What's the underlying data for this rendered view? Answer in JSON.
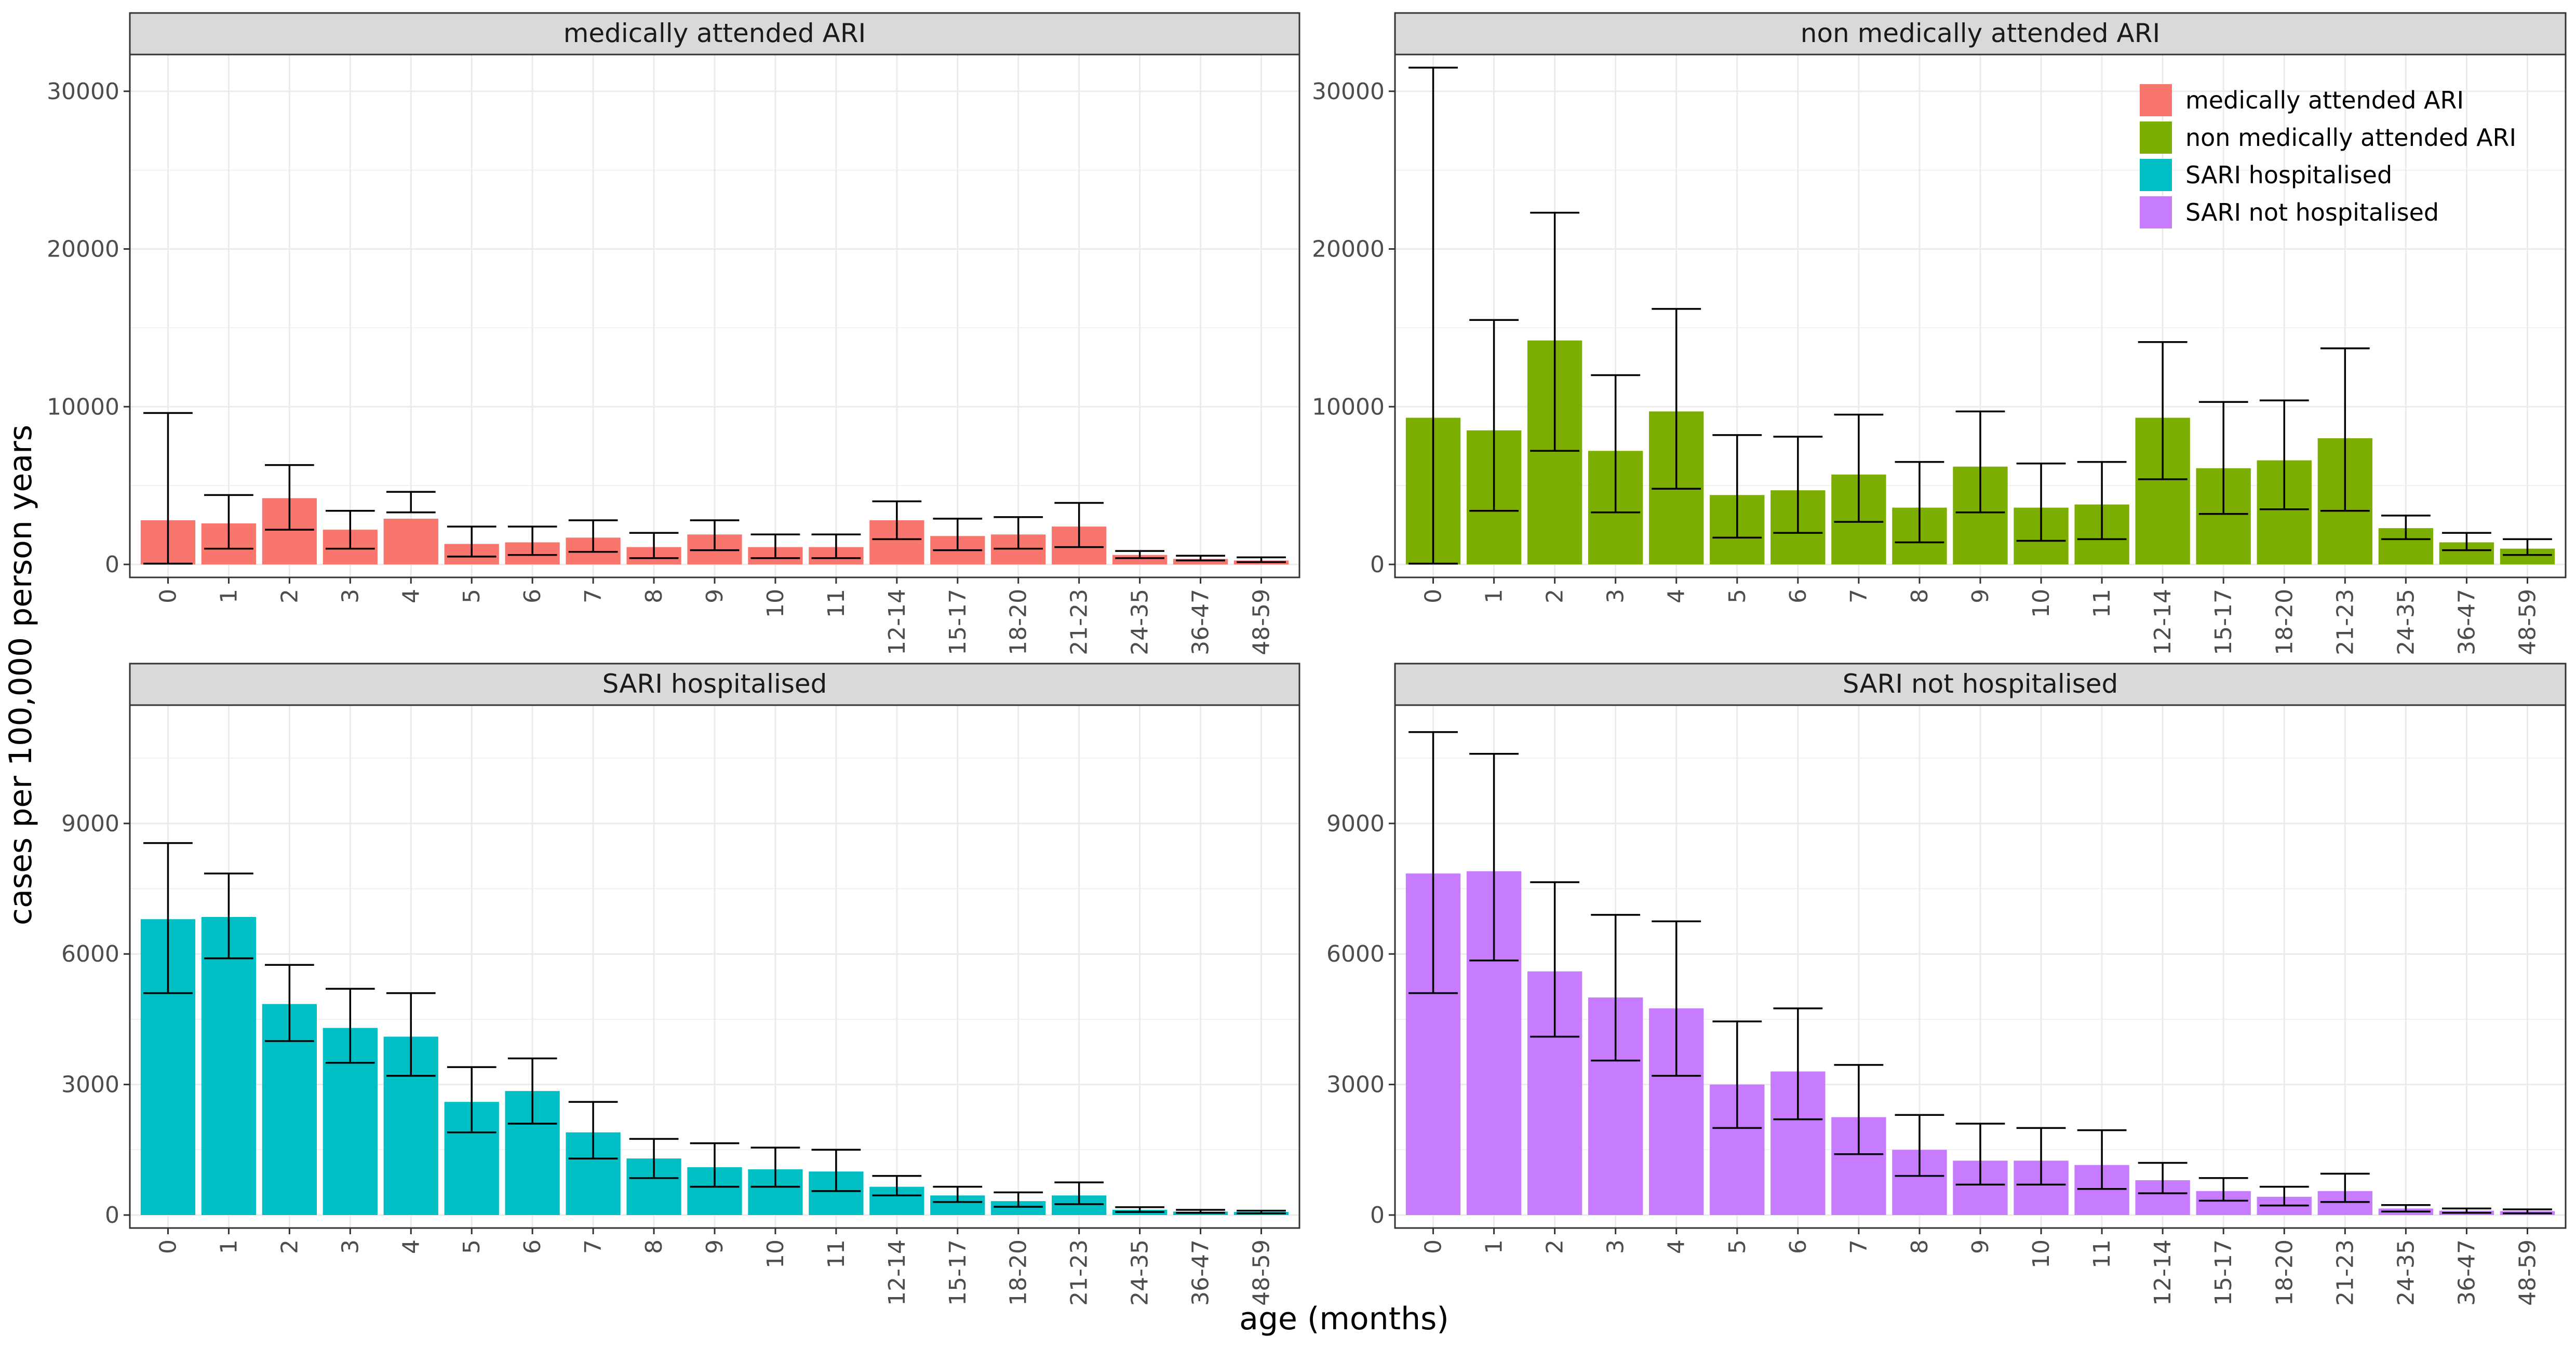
{
  "xlabel": "age (months)",
  "ylabel": "cases per 100,000 person years",
  "legend": {
    "position": "top-right",
    "entries": [
      {
        "label": "medically attended ARI",
        "color": "#F8766D"
      },
      {
        "label": "non medically attended ARI",
        "color": "#7CAE00"
      },
      {
        "label": "SARI hospitalised",
        "color": "#00BFC4"
      },
      {
        "label": "SARI not hospitalised",
        "color": "#C77CFF"
      }
    ]
  },
  "chart_data": [
    {
      "type": "bar",
      "title": "medically attended ARI",
      "color": "#F8766D",
      "categories": [
        "0",
        "1",
        "2",
        "3",
        "4",
        "5",
        "6",
        "7",
        "8",
        "9",
        "10",
        "11",
        "12-14",
        "15-17",
        "18-20",
        "21-23",
        "24-35",
        "36-47",
        "48-59"
      ],
      "values": [
        2800,
        2600,
        4200,
        2200,
        2900,
        1300,
        1400,
        1700,
        1100,
        1900,
        1100,
        1100,
        2800,
        1800,
        1900,
        2400,
        600,
        350,
        250
      ],
      "lower": [
        50,
        1000,
        2200,
        1000,
        3300,
        500,
        600,
        800,
        400,
        900,
        400,
        400,
        1600,
        900,
        1000,
        1100,
        400,
        250,
        150
      ],
      "upper": [
        9600,
        4400,
        6300,
        3400,
        4600,
        2400,
        2400,
        2800,
        2000,
        2800,
        1900,
        1900,
        4000,
        2900,
        3000,
        3900,
        850,
        550,
        450
      ],
      "ylim": [
        0,
        32000
      ],
      "yticks": [
        0,
        10000,
        20000,
        30000
      ],
      "ytick_labels": [
        "0",
        "10000",
        "20000",
        "30000"
      ],
      "grid": true
    },
    {
      "type": "bar",
      "title": "non medically attended ARI",
      "color": "#7CAE00",
      "categories": [
        "0",
        "1",
        "2",
        "3",
        "4",
        "5",
        "6",
        "7",
        "8",
        "9",
        "10",
        "11",
        "12-14",
        "15-17",
        "18-20",
        "21-23",
        "24-35",
        "36-47",
        "48-59"
      ],
      "values": [
        9300,
        8500,
        14200,
        7200,
        9700,
        4400,
        4700,
        5700,
        3600,
        6200,
        3600,
        3800,
        9300,
        6100,
        6600,
        8000,
        2300,
        1400,
        1000
      ],
      "lower": [
        50,
        3400,
        7200,
        3300,
        4800,
        1700,
        2000,
        2700,
        1400,
        3300,
        1500,
        1600,
        5400,
        3200,
        3500,
        3400,
        1600,
        900,
        600
      ],
      "upper": [
        31500,
        15500,
        22300,
        12000,
        16200,
        8200,
        8100,
        9500,
        6500,
        9700,
        6400,
        6500,
        14100,
        10300,
        10400,
        13700,
        3100,
        2000,
        1600
      ],
      "ylim": [
        0,
        32000
      ],
      "yticks": [
        0,
        10000,
        20000,
        30000
      ],
      "ytick_labels": [
        "0",
        "10000",
        "20000",
        "30000"
      ],
      "grid": true
    },
    {
      "type": "bar",
      "title": "SARI hospitalised",
      "color": "#00BFC4",
      "categories": [
        "0",
        "1",
        "2",
        "3",
        "4",
        "5",
        "6",
        "7",
        "8",
        "9",
        "10",
        "11",
        "12-14",
        "15-17",
        "18-20",
        "21-23",
        "24-35",
        "36-47",
        "48-59"
      ],
      "values": [
        6800,
        6850,
        4850,
        4300,
        4100,
        2600,
        2850,
        1900,
        1300,
        1100,
        1050,
        1000,
        650,
        450,
        320,
        450,
        120,
        80,
        70
      ],
      "lower": [
        5100,
        5900,
        4000,
        3500,
        3200,
        1900,
        2100,
        1300,
        850,
        650,
        650,
        550,
        450,
        300,
        190,
        250,
        70,
        50,
        40
      ],
      "upper": [
        8550,
        7850,
        5750,
        5200,
        5100,
        3400,
        3600,
        2600,
        1750,
        1650,
        1550,
        1500,
        900,
        650,
        520,
        750,
        180,
        120,
        100
      ],
      "ylim": [
        0,
        11600
      ],
      "yticks": [
        0,
        3000,
        6000,
        9000
      ],
      "ytick_labels": [
        "0",
        "3000",
        "6000",
        "9000"
      ],
      "grid": true
    },
    {
      "type": "bar",
      "title": "SARI not hospitalised",
      "color": "#C77CFF",
      "categories": [
        "0",
        "1",
        "2",
        "3",
        "4",
        "5",
        "6",
        "7",
        "8",
        "9",
        "10",
        "11",
        "12-14",
        "15-17",
        "18-20",
        "21-23",
        "24-35",
        "36-47",
        "48-59"
      ],
      "values": [
        7850,
        7900,
        5600,
        5000,
        4750,
        3000,
        3300,
        2250,
        1500,
        1250,
        1250,
        1150,
        800,
        550,
        420,
        550,
        150,
        100,
        90
      ],
      "lower": [
        5100,
        5850,
        4100,
        3550,
        3200,
        2000,
        2200,
        1400,
        900,
        700,
        700,
        600,
        500,
        330,
        220,
        300,
        80,
        50,
        40
      ],
      "upper": [
        11100,
        10600,
        7650,
        6900,
        6750,
        4450,
        4750,
        3450,
        2300,
        2100,
        2000,
        1950,
        1200,
        850,
        650,
        950,
        230,
        150,
        130
      ],
      "ylim": [
        0,
        11600
      ],
      "yticks": [
        0,
        3000,
        6000,
        9000
      ],
      "ytick_labels": [
        "0",
        "3000",
        "6000",
        "9000"
      ],
      "grid": true
    }
  ]
}
